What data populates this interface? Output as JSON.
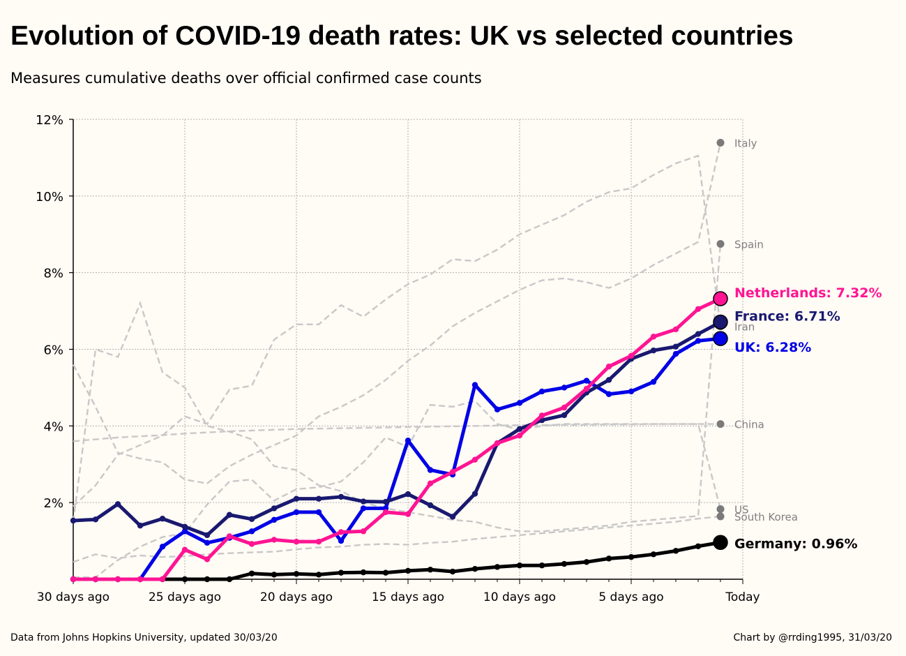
{
  "header": {
    "title": "Evolution of COVID-19 death rates: UK vs selected countries",
    "subtitle": "Measures cumulative deaths over official confirmed case counts"
  },
  "footer": {
    "source": "Data from Johns Hopkins University, updated 30/03/20",
    "credit": "Chart by @rrding1995, 31/03/20"
  },
  "chart_data": {
    "type": "line",
    "x": [
      -29,
      -28,
      -27,
      -26,
      -25,
      -24,
      -23,
      -22,
      -21,
      -20,
      -19,
      -18,
      -17,
      -16,
      -15,
      -14,
      -13,
      -12,
      -11,
      -10,
      -9,
      -8,
      -7,
      -6,
      -5,
      -4,
      -3,
      -2,
      -1,
      0
    ],
    "x_ticks": [
      {
        "x": -29,
        "label": "30 days ago"
      },
      {
        "x": -24,
        "label": "25 days ago"
      },
      {
        "x": -19,
        "label": "20 days ago"
      },
      {
        "x": -14,
        "label": "15 days ago"
      },
      {
        "x": -9,
        "label": "10 days ago"
      },
      {
        "x": -4,
        "label": "5 days ago"
      },
      {
        "x": 1,
        "label": "Today"
      }
    ],
    "xlim": [
      -29,
      1
    ],
    "ylim": [
      0,
      12
    ],
    "y_ticks": [
      {
        "value": 2,
        "label": "2%"
      },
      {
        "value": 4,
        "label": "4%"
      },
      {
        "value": 6,
        "label": "6%"
      },
      {
        "value": 8,
        "label": "8%"
      },
      {
        "value": 10,
        "label": "10%"
      },
      {
        "value": 12,
        "label": "12%"
      }
    ],
    "grid": true,
    "background_series": [
      {
        "name": "Italy",
        "color": "#c8c8c8",
        "label_color": "#808080",
        "values": [
          5.6,
          4.5,
          3.3,
          3.15,
          3.05,
          2.6,
          2.5,
          2.95,
          3.25,
          3.5,
          3.75,
          4.25,
          4.5,
          4.8,
          5.2,
          5.7,
          6.1,
          6.6,
          6.95,
          7.25,
          7.55,
          7.8,
          7.85,
          7.75,
          7.6,
          7.85,
          8.2,
          8.5,
          8.8,
          11.39
        ]
      },
      {
        "name": "Spain",
        "color": "#c8c8c8",
        "label_color": "#808080",
        "values": [
          1.5,
          6.0,
          5.8,
          7.2,
          5.4,
          5.0,
          4.0,
          3.85,
          3.65,
          2.95,
          2.85,
          2.45,
          2.3,
          2.0,
          1.85,
          1.75,
          1.65,
          1.55,
          1.5,
          1.35,
          1.25,
          1.25,
          1.3,
          1.35,
          1.4,
          1.5,
          1.55,
          1.6,
          1.65,
          8.75
        ]
      },
      {
        "name": "Iran",
        "color": "#c8c8c8",
        "label_color": "#808080",
        "values": [
          1.9,
          2.45,
          3.25,
          3.5,
          3.75,
          4.25,
          4.05,
          4.95,
          5.05,
          6.25,
          6.65,
          6.65,
          7.15,
          6.85,
          7.3,
          7.7,
          7.95,
          8.35,
          8.3,
          8.6,
          9.0,
          9.25,
          9.5,
          9.85,
          10.1,
          10.2,
          10.55,
          10.85,
          11.05,
          6.6
        ]
      },
      {
        "name": "China",
        "color": "#c8c8c8",
        "label_color": "#808080",
        "values": [
          3.6,
          3.65,
          3.7,
          3.73,
          3.76,
          3.8,
          3.83,
          3.86,
          3.88,
          3.9,
          3.92,
          3.93,
          3.94,
          3.95,
          3.96,
          3.97,
          3.98,
          3.99,
          4.0,
          4.01,
          4.02,
          4.02,
          4.03,
          4.03,
          4.04,
          4.04,
          4.05,
          4.05,
          4.05,
          4.05
        ]
      },
      {
        "name": "US",
        "color": "#c8c8c8",
        "label_color": "#808080",
        "values": [
          0.05,
          0.05,
          0.5,
          0.85,
          1.1,
          1.2,
          1.95,
          2.55,
          2.6,
          2.05,
          2.35,
          2.4,
          2.55,
          3.05,
          3.7,
          3.45,
          4.55,
          4.5,
          4.65,
          4.05,
          3.9,
          4.0,
          4.05,
          4.05,
          4.05,
          4.05,
          4.05,
          4.05,
          4.05,
          1.83
        ]
      },
      {
        "name": "South Korea",
        "color": "#c8c8c8",
        "label_color": "#808080",
        "values": [
          0.45,
          0.65,
          0.55,
          0.62,
          0.58,
          0.6,
          0.65,
          0.68,
          0.7,
          0.72,
          0.78,
          0.83,
          0.85,
          0.9,
          0.92,
          0.9,
          0.95,
          0.98,
          1.05,
          1.1,
          1.15,
          1.2,
          1.25,
          1.3,
          1.35,
          1.4,
          1.45,
          1.5,
          1.58,
          1.64
        ]
      }
    ],
    "series": [
      {
        "name": "Germany",
        "label": "Germany: 0.96%",
        "color": "#000000",
        "values": [
          0,
          0,
          0,
          0,
          0,
          0,
          0,
          0,
          0.15,
          0.12,
          0.14,
          0.12,
          0.17,
          0.18,
          0.17,
          0.22,
          0.25,
          0.2,
          0.27,
          0.32,
          0.36,
          0.36,
          0.4,
          0.45,
          0.54,
          0.58,
          0.65,
          0.74,
          0.86,
          0.96
        ]
      },
      {
        "name": "UK",
        "label": "UK: 6.28%",
        "color": "#0000e6",
        "values": [
          0,
          0,
          0,
          0,
          0.85,
          1.25,
          0.95,
          1.08,
          1.25,
          1.55,
          1.75,
          1.75,
          1.0,
          1.85,
          1.85,
          3.62,
          2.85,
          2.73,
          5.07,
          4.43,
          4.6,
          4.9,
          5.0,
          5.18,
          4.83,
          4.9,
          5.15,
          5.88,
          6.22,
          6.28
        ]
      },
      {
        "name": "France",
        "label": "France: 6.71%",
        "color": "#191970",
        "values": [
          1.53,
          1.56,
          1.96,
          1.4,
          1.58,
          1.37,
          1.15,
          1.68,
          1.57,
          1.85,
          2.1,
          2.1,
          2.15,
          2.03,
          2.02,
          2.22,
          1.93,
          1.63,
          2.23,
          3.55,
          3.92,
          4.15,
          4.28,
          4.87,
          5.2,
          5.75,
          5.97,
          6.07,
          6.4,
          6.71
        ]
      },
      {
        "name": "Netherlands",
        "label": "Netherlands: 7.32%",
        "color": "#ff1493",
        "values": [
          0,
          0,
          0,
          0,
          0,
          0.77,
          0.52,
          1.12,
          0.92,
          1.03,
          0.98,
          0.98,
          1.23,
          1.25,
          1.75,
          1.7,
          2.5,
          2.8,
          3.12,
          3.55,
          3.75,
          4.27,
          4.48,
          4.97,
          5.55,
          5.83,
          6.33,
          6.52,
          7.05,
          7.32
        ]
      }
    ]
  }
}
